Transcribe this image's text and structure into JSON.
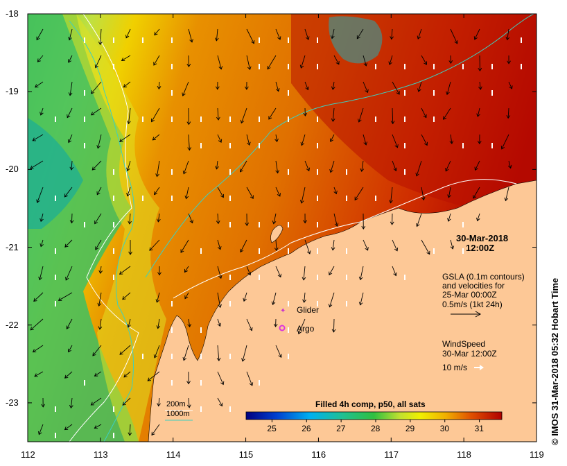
{
  "map": {
    "x_ticks": [
      "112",
      "113",
      "114",
      "115",
      "116",
      "117",
      "118",
      "119"
    ],
    "y_ticks": [
      "-18",
      "-19",
      "-20",
      "-21",
      "-22",
      "-23"
    ],
    "x_range": [
      112,
      119
    ],
    "y_range": [
      -23.5,
      -18
    ],
    "date_title": "30-Mar-2018",
    "time_title": "12:00Z",
    "gsla_lines": [
      "GSLA (0.1m contours)",
      "and velocities for",
      "25-Mar 00:00Z",
      "0.5m/s (1kt 24h)"
    ],
    "wind_lines": [
      "WindSpeed",
      "30-Mar 12:00Z"
    ],
    "wind_scale": "10 m/s",
    "legend_glider": "Glider",
    "legend_argo": "Argo",
    "depth_200": "200m",
    "depth_1000": "1000m",
    "copyright": "© IMOS 31-Mar-2018 05:32 Hobart Time",
    "colors": {
      "land": "#fdc896",
      "contour_200": "#ffffff",
      "contour_1000": "#3cd0c0",
      "glider": "#cc33cc",
      "argo": "#dd33dd"
    }
  },
  "colorbar": {
    "title": "Filled 4h comp, p50, all sats",
    "ticks": [
      "25",
      "26",
      "27",
      "28",
      "29",
      "30",
      "31"
    ],
    "range": [
      24.25,
      31.65
    ]
  }
}
